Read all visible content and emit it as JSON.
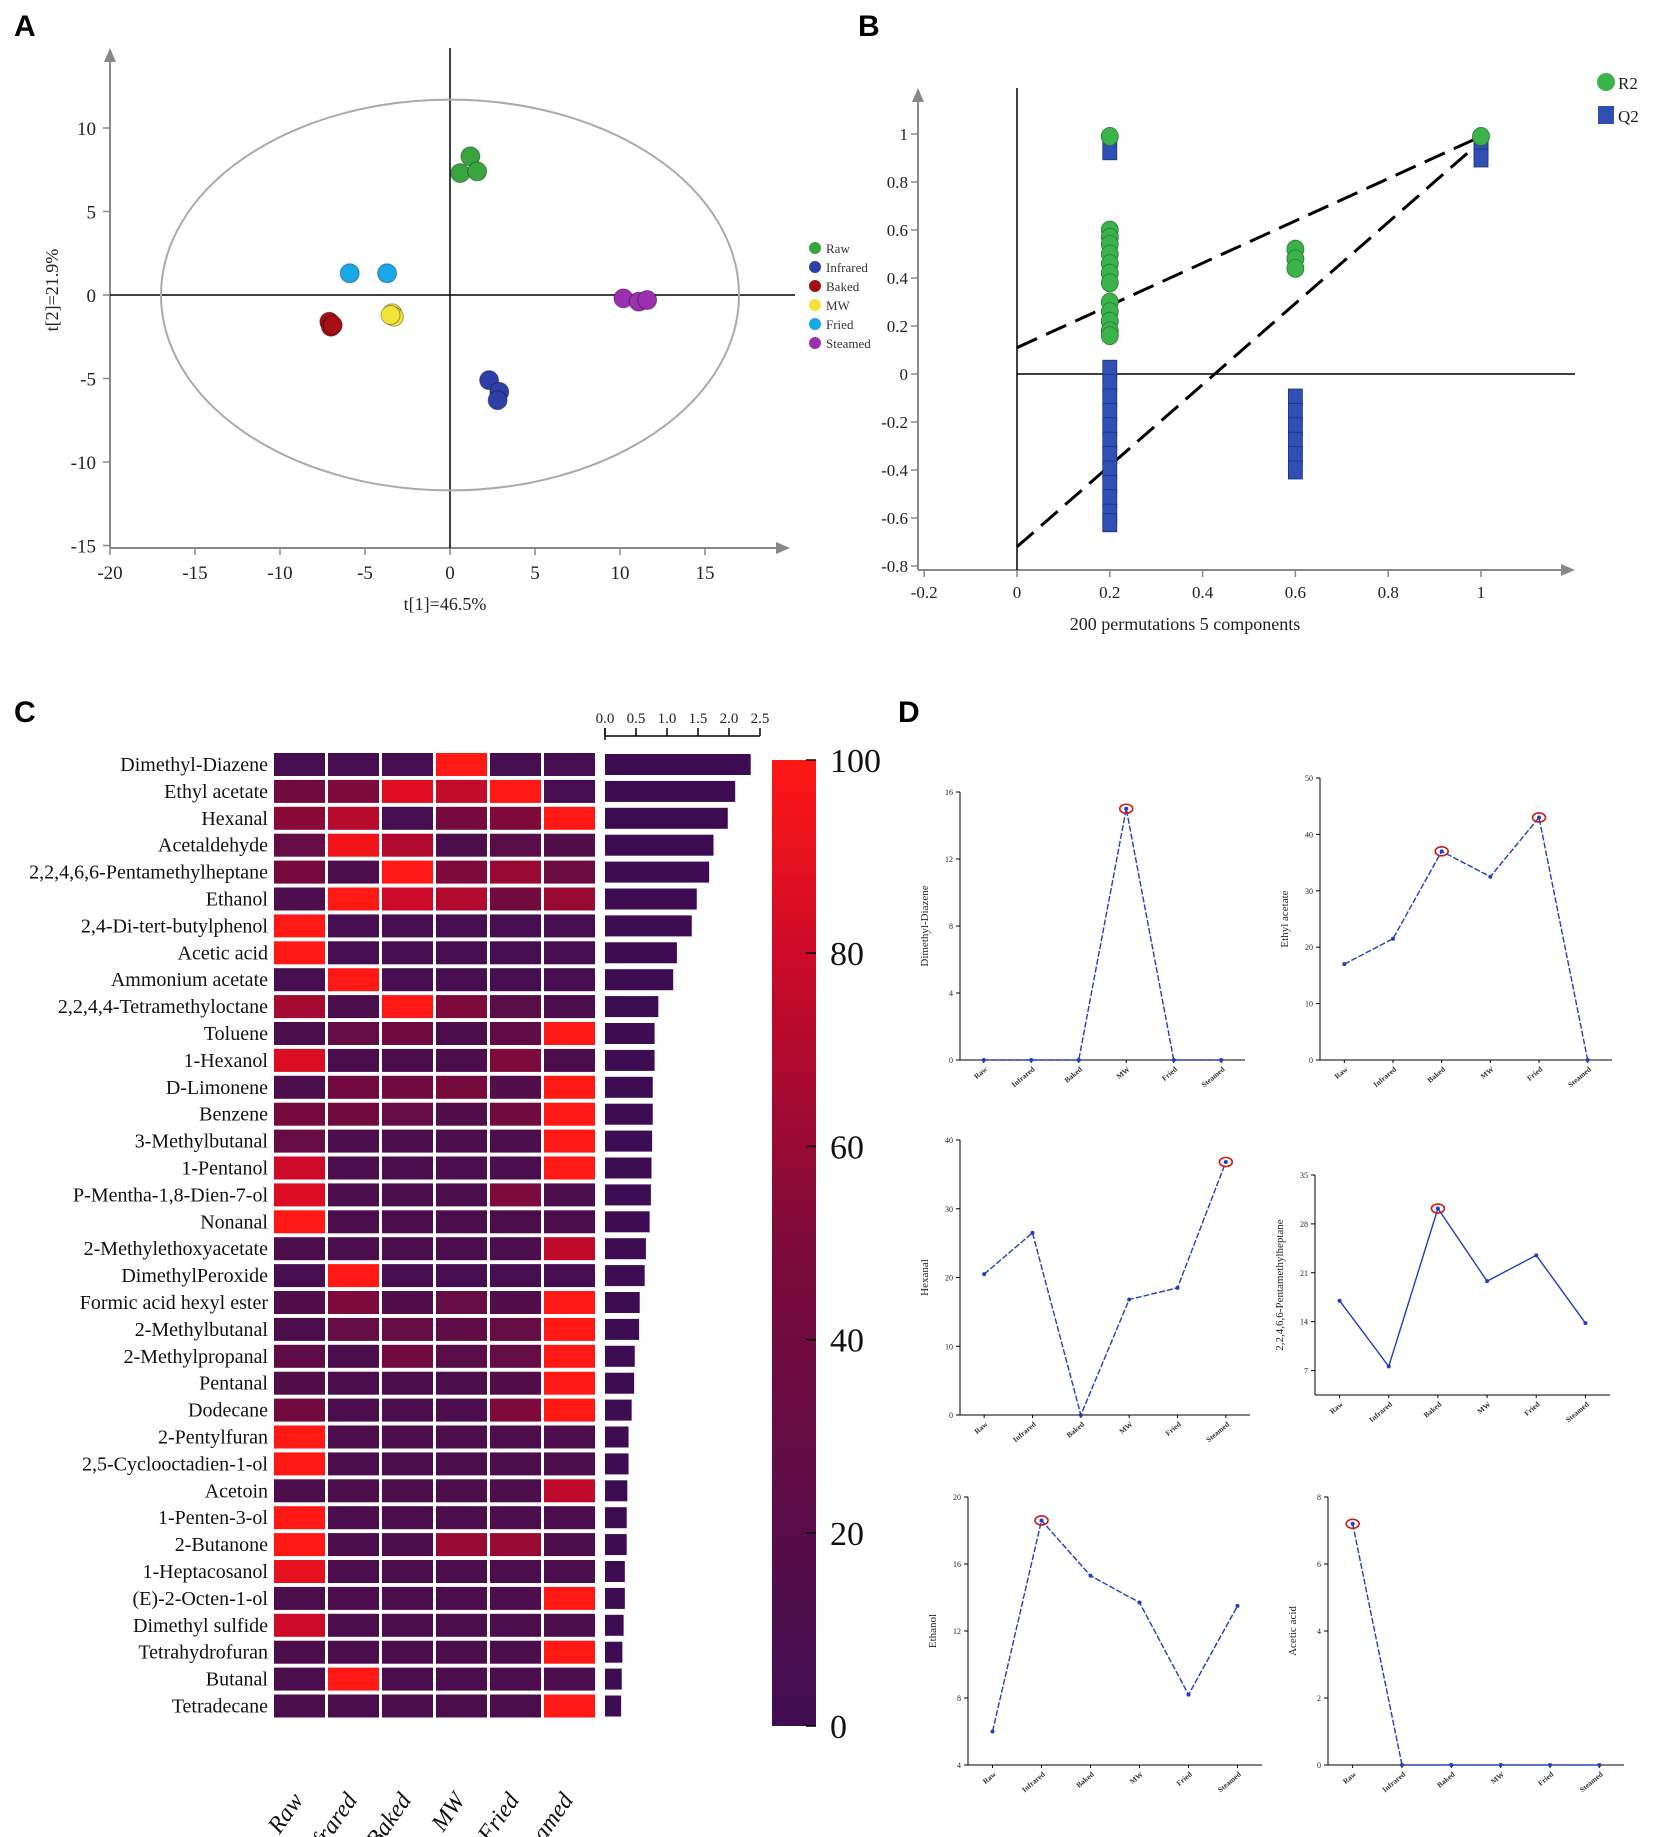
{
  "panel_labels": {
    "a": "A",
    "b": "B",
    "c": "C",
    "d": "D"
  },
  "colors": {
    "raw": "#3aa53e",
    "infrared": "#2f3fa8",
    "baked": "#a30f14",
    "mw": "#f1e33a",
    "fried": "#19a7e6",
    "steamed": "#9b2fb0",
    "r2": "#3bb34a",
    "q2": "#2f4fb3",
    "line_blue": "#1f3fbf"
  },
  "chart_data": [
    {
      "id": "A",
      "type": "scatter",
      "xlabel": "t[1]=46.5%",
      "ylabel": "t[2]=21.9%",
      "xlim": [
        -20,
        20
      ],
      "ylim": [
        -15,
        15
      ],
      "xticks": [
        "-20",
        "-15",
        "-10",
        "-5",
        "0",
        "5",
        "10",
        "15"
      ],
      "yticks": [
        "10",
        "5",
        "0",
        "-5",
        "-10",
        "-15"
      ],
      "ellipse": {
        "center": [
          0,
          0
        ],
        "rx": 17,
        "ry": 11.7
      },
      "series": [
        {
          "name": "Raw",
          "points": [
            [
              0.6,
              7.3
            ],
            [
              1.2,
              8.3
            ],
            [
              1.6,
              7.4
            ]
          ]
        },
        {
          "name": "Infrared",
          "points": [
            [
              2.3,
              -5.1
            ],
            [
              2.9,
              -5.8
            ],
            [
              2.8,
              -6.3
            ]
          ]
        },
        {
          "name": "Baked",
          "points": [
            [
              -7.1,
              -1.6
            ],
            [
              -7.0,
              -1.9
            ],
            [
              -6.9,
              -1.8
            ]
          ]
        },
        {
          "name": "MW",
          "points": [
            [
              -3.4,
              -1.1
            ],
            [
              -3.3,
              -1.3
            ],
            [
              -3.5,
              -1.2
            ]
          ]
        },
        {
          "name": "Fried",
          "points": [
            [
              -5.9,
              1.3
            ],
            [
              -3.7,
              1.3
            ]
          ]
        },
        {
          "name": "Steamed",
          "points": [
            [
              10.2,
              -0.2
            ],
            [
              11.1,
              -0.4
            ],
            [
              11.6,
              -0.3
            ]
          ]
        }
      ]
    },
    {
      "id": "B",
      "type": "scatter",
      "xlabel": "200 permutations 5 components",
      "xlim": [
        -0.2,
        1.2
      ],
      "ylim": [
        -0.8,
        1.2
      ],
      "xticks": [
        "-0.2",
        "0",
        "0.2",
        "0.4",
        "0.6",
        "0.8",
        "1"
      ],
      "yticks": [
        "1",
        "0.8",
        "0.6",
        "0.4",
        "0.2",
        "0",
        "-0.2",
        "-0.4",
        "-0.6",
        "-0.8"
      ],
      "legend": [
        "R2",
        "Q2"
      ],
      "r2_points": [
        [
          0.2,
          0.99
        ],
        [
          0.2,
          0.6
        ],
        [
          0.2,
          0.57
        ],
        [
          0.2,
          0.54
        ],
        [
          0.2,
          0.5
        ],
        [
          0.2,
          0.46
        ],
        [
          0.2,
          0.42
        ],
        [
          0.2,
          0.38
        ],
        [
          0.2,
          0.3
        ],
        [
          0.2,
          0.26
        ],
        [
          0.2,
          0.22
        ],
        [
          0.2,
          0.18
        ],
        [
          0.2,
          0.16
        ],
        [
          0.6,
          0.52
        ],
        [
          0.6,
          0.48
        ],
        [
          0.6,
          0.44
        ],
        [
          1.0,
          0.99
        ]
      ],
      "q2_points": [
        [
          0.2,
          0.93
        ],
        [
          0.2,
          0.02
        ],
        [
          0.2,
          -0.04
        ],
        [
          0.2,
          -0.1
        ],
        [
          0.2,
          -0.16
        ],
        [
          0.2,
          -0.22
        ],
        [
          0.2,
          -0.28
        ],
        [
          0.2,
          -0.34
        ],
        [
          0.2,
          -0.4
        ],
        [
          0.2,
          -0.46
        ],
        [
          0.2,
          -0.52
        ],
        [
          0.2,
          -0.58
        ],
        [
          0.2,
          -0.62
        ],
        [
          0.6,
          -0.1
        ],
        [
          0.6,
          -0.16
        ],
        [
          0.6,
          -0.22
        ],
        [
          0.6,
          -0.28
        ],
        [
          0.6,
          -0.34
        ],
        [
          0.6,
          -0.4
        ],
        [
          1.0,
          0.97
        ],
        [
          1.0,
          0.93
        ],
        [
          1.0,
          0.9
        ]
      ],
      "r2_line": [
        [
          0,
          0.11
        ],
        [
          1.0,
          0.99
        ]
      ],
      "q2_line": [
        [
          0,
          -0.72
        ],
        [
          1.0,
          0.97
        ]
      ]
    },
    {
      "id": "C",
      "type": "heatmap",
      "columns": [
        "Raw",
        "Infrared",
        "Baked",
        "MW",
        "Fried",
        "Steamed"
      ],
      "colorbar_ticks": [
        "100",
        "80",
        "60",
        "40",
        "20",
        "0"
      ],
      "bar_ticks": [
        "0.0",
        "0.5",
        "1.0",
        "1.5",
        "2.0",
        "2.5"
      ],
      "bar_xlim": [
        0,
        2.5
      ],
      "rows": [
        {
          "name": "Dimethyl-Diazene",
          "values": [
            5,
            5,
            5,
            100,
            5,
            5
          ],
          "vip": 2.35
        },
        {
          "name": "Ethyl acetate",
          "values": [
            40,
            50,
            87,
            76,
            100,
            5
          ],
          "vip": 2.1
        },
        {
          "name": "Hexanal",
          "values": [
            55,
            72,
            5,
            45,
            50,
            100
          ],
          "vip": 1.98
        },
        {
          "name": "Acetaldehyde",
          "values": [
            30,
            95,
            70,
            10,
            20,
            15
          ],
          "vip": 1.75
        },
        {
          "name": "2,2,4,6,6-Pentamethylheptane",
          "values": [
            45,
            10,
            100,
            50,
            60,
            35
          ],
          "vip": 1.68
        },
        {
          "name": "Ethanol",
          "values": [
            10,
            100,
            80,
            70,
            40,
            60
          ],
          "vip": 1.48
        },
        {
          "name": "2,4-Di-tert-butylphenol",
          "values": [
            100,
            5,
            5,
            5,
            5,
            5
          ],
          "vip": 1.4
        },
        {
          "name": "Acetic acid",
          "values": [
            100,
            5,
            5,
            5,
            5,
            5
          ],
          "vip": 1.16
        },
        {
          "name": "Ammonium acetate",
          "values": [
            5,
            100,
            5,
            5,
            5,
            5
          ],
          "vip": 1.1
        },
        {
          "name": "2,2,4,4-Tetramethyloctane",
          "values": [
            65,
            10,
            100,
            50,
            20,
            10
          ],
          "vip": 0.86
        },
        {
          "name": "Toluene",
          "values": [
            10,
            30,
            40,
            10,
            25,
            100
          ],
          "vip": 0.8
        },
        {
          "name": "1-Hexanol",
          "values": [
            85,
            10,
            10,
            10,
            50,
            10
          ],
          "vip": 0.8
        },
        {
          "name": "D-Limonene",
          "values": [
            10,
            40,
            40,
            45,
            15,
            100
          ],
          "vip": 0.77
        },
        {
          "name": "Benzene",
          "values": [
            45,
            40,
            30,
            15,
            40,
            100
          ],
          "vip": 0.77
        },
        {
          "name": "3-Methylbutanal",
          "values": [
            30,
            10,
            10,
            10,
            10,
            100
          ],
          "vip": 0.76
        },
        {
          "name": "1-Pentanol",
          "values": [
            80,
            10,
            10,
            10,
            10,
            100
          ],
          "vip": 0.75
        },
        {
          "name": "P-Mentha-1,8-Dien-7-ol",
          "values": [
            85,
            10,
            10,
            10,
            50,
            10
          ],
          "vip": 0.74
        },
        {
          "name": "Nonanal",
          "values": [
            100,
            10,
            10,
            10,
            10,
            10
          ],
          "vip": 0.72
        },
        {
          "name": "2-Methylethoxyacetate",
          "values": [
            10,
            10,
            10,
            10,
            10,
            75
          ],
          "vip": 0.66
        },
        {
          "name": "DimethylPeroxide",
          "values": [
            5,
            100,
            5,
            5,
            5,
            5
          ],
          "vip": 0.64
        },
        {
          "name": "Formic acid hexyl ester",
          "values": [
            15,
            50,
            15,
            30,
            15,
            100
          ],
          "vip": 0.56
        },
        {
          "name": "2-Methylbutanal",
          "values": [
            10,
            30,
            30,
            25,
            30,
            100
          ],
          "vip": 0.55
        },
        {
          "name": "2-Methylpropanal",
          "values": [
            25,
            10,
            40,
            20,
            30,
            100
          ],
          "vip": 0.48
        },
        {
          "name": "Pentanal",
          "values": [
            15,
            10,
            10,
            10,
            15,
            100
          ],
          "vip": 0.47
        },
        {
          "name": "Dodecane",
          "values": [
            40,
            10,
            10,
            10,
            50,
            100
          ],
          "vip": 0.43
        },
        {
          "name": "2-Pentylfuran",
          "values": [
            100,
            10,
            10,
            10,
            10,
            10
          ],
          "vip": 0.38
        },
        {
          "name": "2,5-Cyclooctadien-1-ol",
          "values": [
            100,
            10,
            10,
            10,
            10,
            10
          ],
          "vip": 0.38
        },
        {
          "name": "Acetoin",
          "values": [
            10,
            10,
            10,
            10,
            10,
            75
          ],
          "vip": 0.36
        },
        {
          "name": "1-Penten-3-ol",
          "values": [
            100,
            10,
            10,
            10,
            10,
            10
          ],
          "vip": 0.35
        },
        {
          "name": "2-Butanone",
          "values": [
            100,
            10,
            10,
            60,
            60,
            10
          ],
          "vip": 0.35
        },
        {
          "name": "1-Heptacosanol",
          "values": [
            90,
            10,
            10,
            10,
            10,
            10
          ],
          "vip": 0.32
        },
        {
          "name": "(E)-2-Octen-1-ol",
          "values": [
            10,
            10,
            10,
            10,
            10,
            100
          ],
          "vip": 0.32
        },
        {
          "name": "Dimethyl sulfide",
          "values": [
            80,
            10,
            10,
            10,
            10,
            10
          ],
          "vip": 0.3
        },
        {
          "name": "Tetrahydrofuran",
          "values": [
            10,
            10,
            10,
            10,
            10,
            100
          ],
          "vip": 0.28
        },
        {
          "name": "Butanal",
          "values": [
            10,
            100,
            10,
            10,
            10,
            10
          ],
          "vip": 0.27
        },
        {
          "name": "Tetradecane",
          "values": [
            10,
            10,
            10,
            10,
            10,
            100
          ],
          "vip": 0.26
        }
      ]
    },
    {
      "id": "D",
      "type": "line",
      "categories": [
        "Raw",
        "Infrared",
        "Baked",
        "MW",
        "Fried",
        "Steamed"
      ],
      "subplots": [
        {
          "ylabel": "Dimethyl-Diazene",
          "ylim": [
            0,
            16
          ],
          "yticks": [
            "0",
            "4",
            "8",
            "12",
            "16"
          ],
          "values": [
            0,
            0,
            0,
            15.0,
            0,
            0
          ],
          "highlight": 3
        },
        {
          "ylabel": "Ethyl acetate",
          "ylim": [
            0,
            50
          ],
          "yticks": [
            "0",
            "10",
            "20",
            "30",
            "40",
            "50"
          ],
          "values": [
            17,
            21.5,
            37,
            32.5,
            43,
            0
          ],
          "highlight": [
            2,
            4
          ]
        },
        {
          "ylabel": "Hexanal",
          "ylim": [
            0,
            40
          ],
          "yticks": [
            "0",
            "10",
            "20",
            "30",
            "40"
          ],
          "values": [
            20.5,
            26.5,
            0,
            16.8,
            18.5,
            36.8
          ],
          "highlight": 5
        },
        {
          "ylabel": "2,2,4,6,6-Pentamethylheptane",
          "ylim": [
            3.5,
            35
          ],
          "yticks": [
            "7",
            "14",
            "21",
            "28",
            "35"
          ],
          "values": [
            17,
            7.6,
            30.2,
            19.8,
            23.5,
            13.8
          ],
          "highlight": 2
        },
        {
          "ylabel": "Ethanol",
          "ylim": [
            4,
            20
          ],
          "yticks": [
            "4",
            "8",
            "12",
            "16",
            "20"
          ],
          "values": [
            6,
            18.6,
            15.3,
            13.7,
            8.2,
            13.5
          ],
          "highlight": 1
        },
        {
          "ylabel": "Acetic acid",
          "ylim": [
            0,
            8
          ],
          "yticks": [
            "0",
            "2",
            "4",
            "6",
            "8"
          ],
          "values": [
            7.2,
            0,
            0,
            0,
            0,
            0
          ],
          "highlight": 0
        }
      ]
    }
  ]
}
